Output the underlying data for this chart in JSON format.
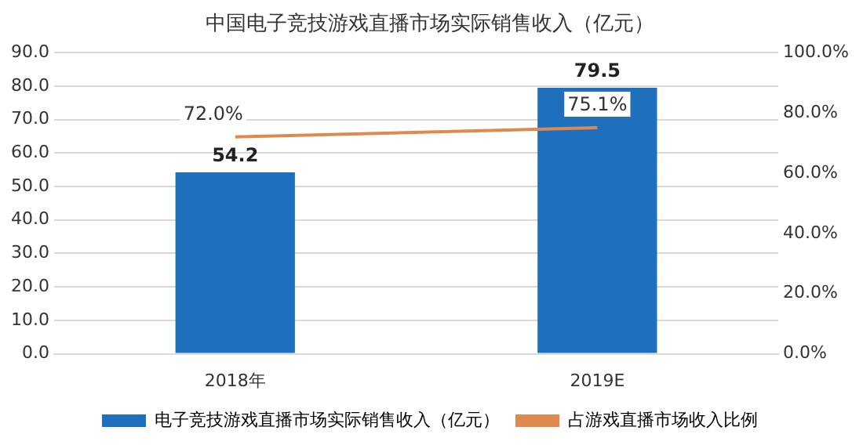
{
  "chart_data": {
    "type": "bar",
    "title": "中国电子竞技游戏直播市场实际销售收入（亿元）",
    "categories": [
      "2018年",
      "2019E"
    ],
    "series": [
      {
        "name": "电子竞技游戏直播市场实际销售收入（亿元）",
        "color": "#1f6fbf",
        "values": [
          54.2,
          79.5
        ],
        "value_labels": [
          "54.2",
          "79.5"
        ]
      },
      {
        "name": "占游戏直播市场收入比例",
        "type": "line",
        "axis": "y2",
        "color": "#e0894f",
        "values": [
          72.0,
          75.1
        ],
        "value_labels": [
          "72.0%",
          "75.1%"
        ]
      }
    ],
    "ylim": [
      0,
      90
    ],
    "yticks": [
      {
        "value": 0,
        "label": "0.0"
      },
      {
        "value": 10,
        "label": "10.0"
      },
      {
        "value": 20,
        "label": "20.0"
      },
      {
        "value": 30,
        "label": "30.0"
      },
      {
        "value": 40,
        "label": "40.0"
      },
      {
        "value": 50,
        "label": "50.0"
      },
      {
        "value": 60,
        "label": "60.0"
      },
      {
        "value": 70,
        "label": "70.0"
      },
      {
        "value": 80,
        "label": "80.0"
      },
      {
        "value": 90,
        "label": "90.0"
      }
    ],
    "y2lim": [
      0,
      100
    ],
    "y2ticks": [
      {
        "value": 0,
        "label": "0.0%"
      },
      {
        "value": 20,
        "label": "20.0%"
      },
      {
        "value": 40,
        "label": "40.0%"
      },
      {
        "value": 60,
        "label": "60.0%"
      },
      {
        "value": 80,
        "label": "80.0%"
      },
      {
        "value": 100,
        "label": "100.0%"
      }
    ],
    "grid": "y",
    "legend": "bottom",
    "marker": "none",
    "line_style": "solid"
  }
}
